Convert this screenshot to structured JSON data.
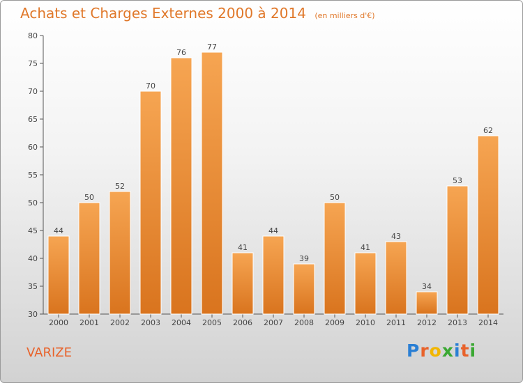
{
  "header": {
    "title": "Achats et Charges Externes 2000 à 2014",
    "subtitle": "(en milliers d'€)"
  },
  "footer": {
    "place": "VARIZE",
    "logo_letters": [
      "P",
      "r",
      "o",
      "x",
      "i",
      "t",
      "i"
    ],
    "logo_colors": [
      "#2a7fd4",
      "#e8622a",
      "#f2b600",
      "#3aa832",
      "#2a7fd4",
      "#e8622a",
      "#3aa832"
    ]
  },
  "colors": {
    "accent": "#e0782a",
    "bar_top": "#f6a552",
    "bar_bottom": "#d9741e"
  },
  "chart_data": {
    "type": "bar",
    "title": "Achats et Charges Externes 2000 à 2014",
    "subtitle": "(en milliers d'€)",
    "xlabel": "",
    "ylabel": "",
    "categories": [
      "2000",
      "2001",
      "2002",
      "2003",
      "2004",
      "2005",
      "2006",
      "2007",
      "2008",
      "2009",
      "2010",
      "2011",
      "2012",
      "2013",
      "2014"
    ],
    "values": [
      44,
      50,
      52,
      70,
      76,
      77,
      41,
      44,
      39,
      50,
      41,
      43,
      34,
      53,
      62
    ],
    "ylim": [
      30,
      80
    ],
    "yticks": [
      30,
      35,
      40,
      45,
      50,
      55,
      60,
      65,
      70,
      75,
      80
    ],
    "grid": false,
    "legend": "none"
  }
}
